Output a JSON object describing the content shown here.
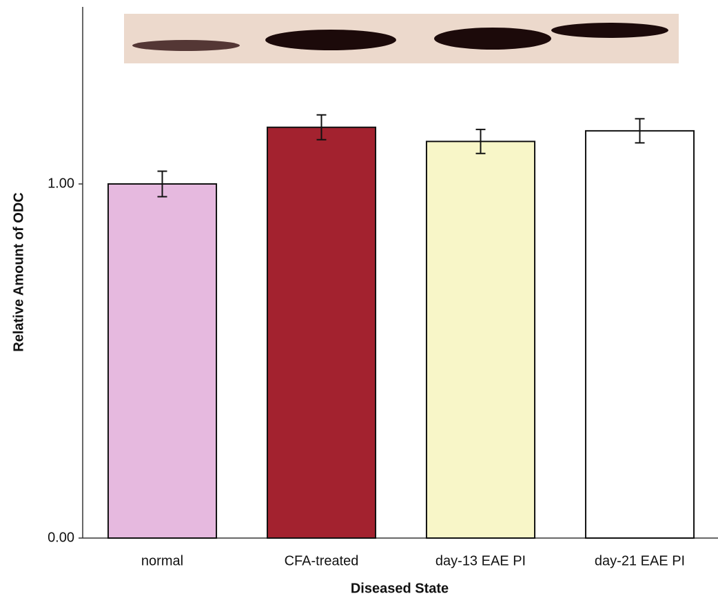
{
  "chart_data": {
    "type": "bar",
    "categories": [
      "normal",
      "CFA-treated",
      "day-13 EAE PI",
      "day-21 EAE PI"
    ],
    "values": [
      1.0,
      1.16,
      1.12,
      1.15
    ],
    "errors": [
      0.036,
      0.035,
      0.034,
      0.034
    ],
    "colors": [
      "#e6b9df",
      "#a3222f",
      "#f8f6c8",
      "#ffffff"
    ],
    "ylim": [
      0,
      1.5
    ],
    "yticks": [
      {
        "value": 0,
        "label": "0.00"
      },
      {
        "value": 1,
        "label": "1.00"
      }
    ],
    "y_label": "Relative Amount of ODC",
    "x_label": "Diseased State"
  }
}
